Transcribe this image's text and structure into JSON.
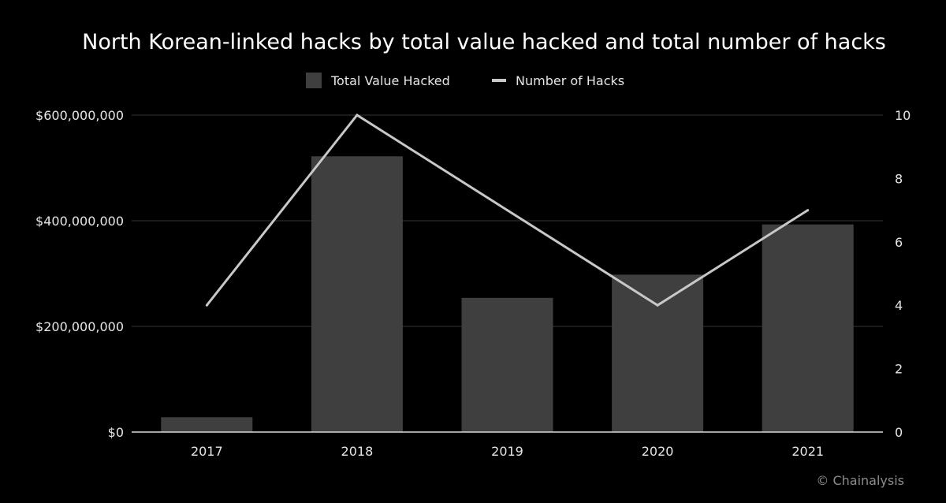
{
  "colors": {
    "background": "#000000",
    "bar": "#3f3f3f",
    "line": "#c8c8c8",
    "grid": "#333333",
    "axis": "#d9d9d9",
    "text": "#e6e6e6"
  },
  "credit": "© Chainalysis",
  "chart_data": {
    "type": "bar",
    "title": "North Korean-linked hacks by total value hacked and total number of hacks",
    "categories": [
      "2017",
      "2018",
      "2019",
      "2020",
      "2021"
    ],
    "series": [
      {
        "name": "Total Value Hacked",
        "type": "bar",
        "axis": "left",
        "values": [
          28000000,
          522000000,
          254000000,
          298000000,
          393000000
        ]
      },
      {
        "name": "Number of Hacks",
        "type": "line",
        "axis": "right",
        "values": [
          4,
          10,
          7,
          4,
          7
        ]
      }
    ],
    "y_left": {
      "ylim": [
        0,
        600000000
      ],
      "ticks": [
        0,
        200000000,
        400000000,
        600000000
      ],
      "tick_labels": [
        "$0",
        "$200,000,000",
        "$400,000,000",
        "$600,000,000"
      ]
    },
    "y_right": {
      "ylim": [
        0,
        10
      ],
      "ticks": [
        0,
        2,
        4,
        6,
        8,
        10
      ],
      "tick_labels": [
        "0",
        "2",
        "4",
        "6",
        "8",
        "10"
      ]
    },
    "grid": true,
    "legend_position": "top-center"
  }
}
